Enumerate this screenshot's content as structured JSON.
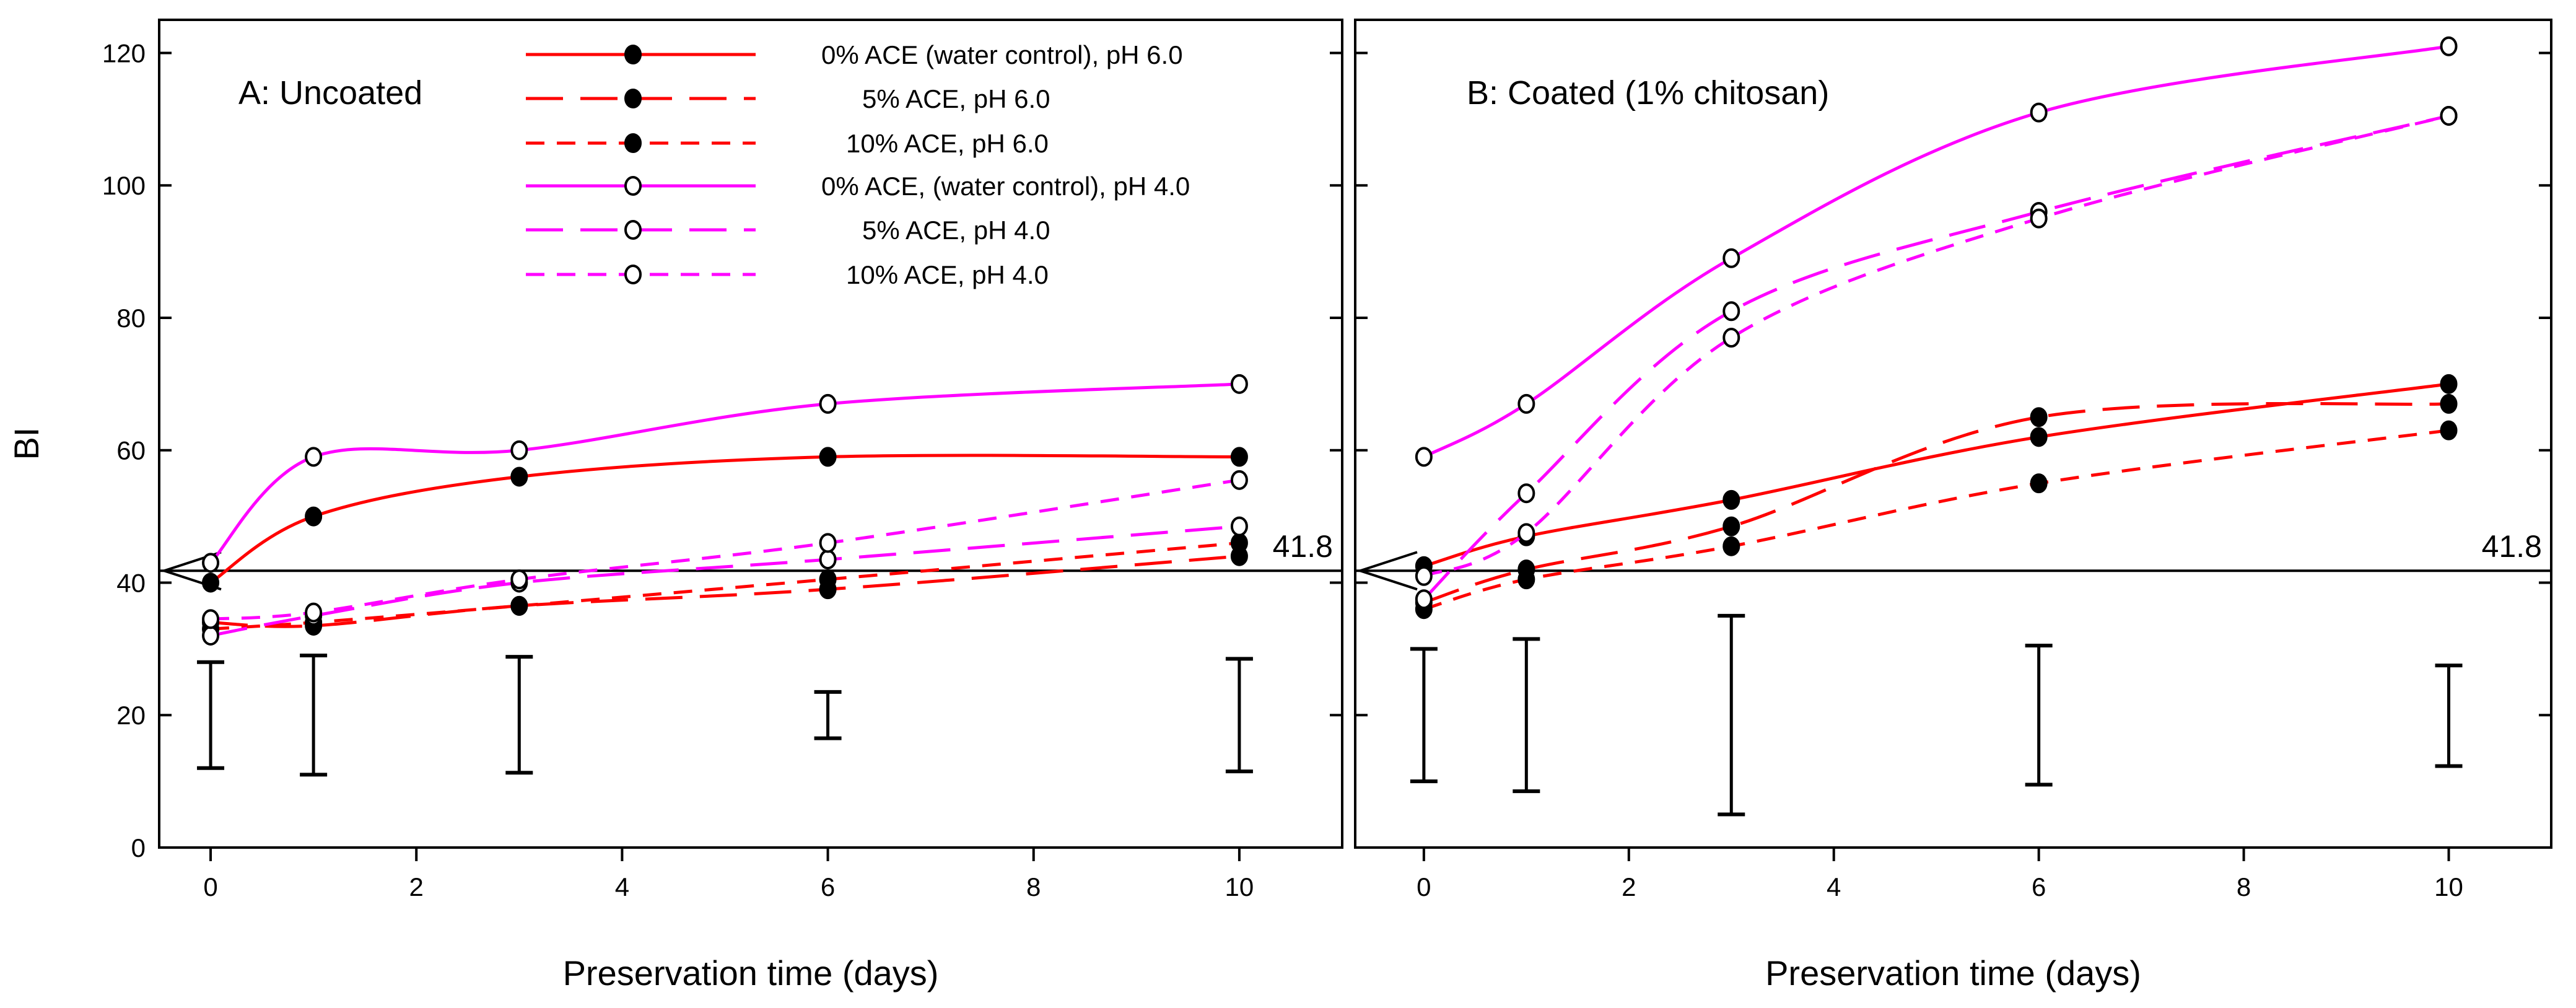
{
  "figure": {
    "ylabel": "BI"
  },
  "legend": {
    "entries": [
      {
        "label": "0% ACE (water control), pH 6.0",
        "color": "#ff0000",
        "dash": "solid",
        "marker": "filled"
      },
      {
        "label": "5% ACE, pH 6.0",
        "color": "#ff0000",
        "dash": "long",
        "marker": "filled"
      },
      {
        "label": "10% ACE, pH 6.0",
        "color": "#ff0000",
        "dash": "short",
        "marker": "filled"
      },
      {
        "label": "0% ACE, (water control), pH 4.0",
        "color": "#ff00ff",
        "dash": "solid",
        "marker": "open"
      },
      {
        "label": "5% ACE, pH 4.0",
        "color": "#ff00ff",
        "dash": "long",
        "marker": "open"
      },
      {
        "label": "10% ACE, pH 4.0",
        "color": "#ff00ff",
        "dash": "short",
        "marker": "open"
      }
    ]
  },
  "chart_data": [
    {
      "type": "line",
      "title": "A: Uncoated",
      "xlabel": "Preservation time (days)",
      "ylabel": "BI",
      "xlim": [
        -0.5,
        11
      ],
      "ylim": [
        0,
        125
      ],
      "xticks": [
        0,
        2,
        4,
        6,
        8,
        10
      ],
      "yticks": [
        0,
        20,
        40,
        60,
        80,
        100,
        120
      ],
      "x": [
        0,
        1,
        3,
        6,
        10
      ],
      "reference_line": {
        "value": 41.8,
        "label": "41.8"
      },
      "series": [
        {
          "name": "0% ACE (water control), pH 6.0",
          "values": [
            40,
            50,
            56,
            59,
            59
          ]
        },
        {
          "name": "5% ACE, pH 6.0",
          "values": [
            34,
            33.5,
            36.5,
            39,
            44
          ]
        },
        {
          "name": "10% ACE, pH 6.0",
          "values": [
            33,
            34,
            36.5,
            40.5,
            46
          ]
        },
        {
          "name": "0% ACE, (water control), pH 4.0",
          "values": [
            43,
            59,
            60,
            67,
            70
          ]
        },
        {
          "name": "5% ACE, pH 4.0",
          "values": [
            32,
            35,
            40,
            43.5,
            48.5
          ]
        },
        {
          "name": "10% ACE, pH 4.0",
          "values": [
            34.5,
            35.5,
            40.5,
            46,
            55.5
          ]
        }
      ],
      "error_bars": {
        "center": 20,
        "low": [
          12,
          11,
          11.3,
          16.5,
          11.5
        ],
        "high": [
          28,
          29,
          28.8,
          23.5,
          28.5
        ]
      }
    },
    {
      "type": "line",
      "title": "B: Coated (1% chitosan)",
      "xlabel": "Preservation time (days)",
      "ylabel": "BI",
      "xlim": [
        -0.67,
        11
      ],
      "ylim": [
        0,
        125
      ],
      "xticks": [
        0,
        2,
        4,
        6,
        8,
        10
      ],
      "yticks": [
        0,
        20,
        40,
        60,
        80,
        100,
        120
      ],
      "x": [
        0,
        1,
        3,
        6,
        10
      ],
      "reference_line": {
        "value": 41.8,
        "label": "41.8"
      },
      "series": [
        {
          "name": "0% ACE (water control), pH 6.0",
          "values": [
            42.5,
            47,
            52.5,
            62,
            70
          ]
        },
        {
          "name": "5% ACE, pH 6.0",
          "values": [
            37,
            42,
            48.5,
            65,
            67
          ]
        },
        {
          "name": "10% ACE, pH 6.0",
          "values": [
            36,
            40.5,
            45.5,
            55,
            63
          ]
        },
        {
          "name": "0% ACE, (water control), pH 4.0",
          "values": [
            59,
            67,
            89,
            111,
            121
          ]
        },
        {
          "name": "5% ACE, pH 4.0",
          "values": [
            37.5,
            53.5,
            81,
            96,
            110.5
          ]
        },
        {
          "name": "10% ACE, pH 4.0",
          "values": [
            41,
            47.5,
            77,
            95,
            110.5
          ]
        }
      ],
      "error_bars": {
        "center": 20,
        "low": [
          10,
          8.5,
          5,
          9.5,
          12.3
        ],
        "high": [
          30,
          31.5,
          35,
          30.5,
          27.5
        ]
      }
    }
  ]
}
